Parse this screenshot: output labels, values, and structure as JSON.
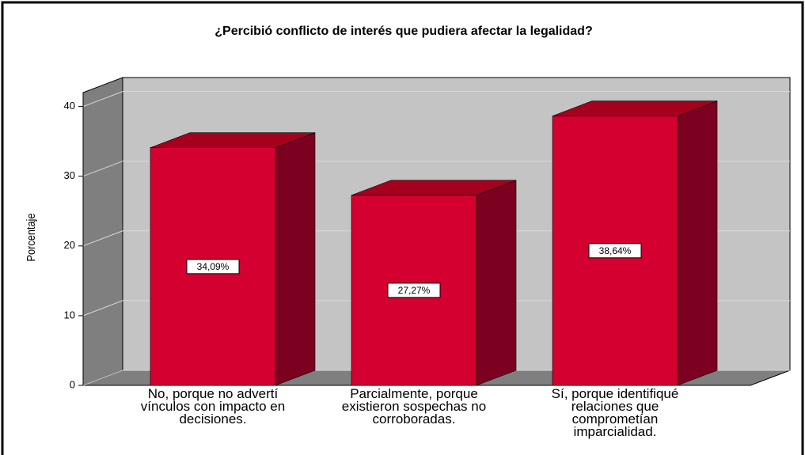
{
  "chart_data": {
    "type": "bar3d",
    "title": "¿Percibió conflicto de interés que pudiera afectar la legalidad?",
    "ylabel": "Porcentaje",
    "categories": [
      "No, porque no advertí vínculos con impacto en decisiones.",
      "Parcialmente, porque existieron sospechas no corroboradas.",
      "Sí, porque identifiqué relaciones que comprometían imparcialidad."
    ],
    "values": [
      34.09,
      27.27,
      38.64
    ],
    "value_labels": [
      "34,09%",
      "27,27%",
      "38,64%"
    ],
    "color": "#d4002f",
    "ylim": [
      0,
      42
    ],
    "yticks": [
      0,
      10,
      20,
      30,
      40
    ],
    "grid": true
  }
}
